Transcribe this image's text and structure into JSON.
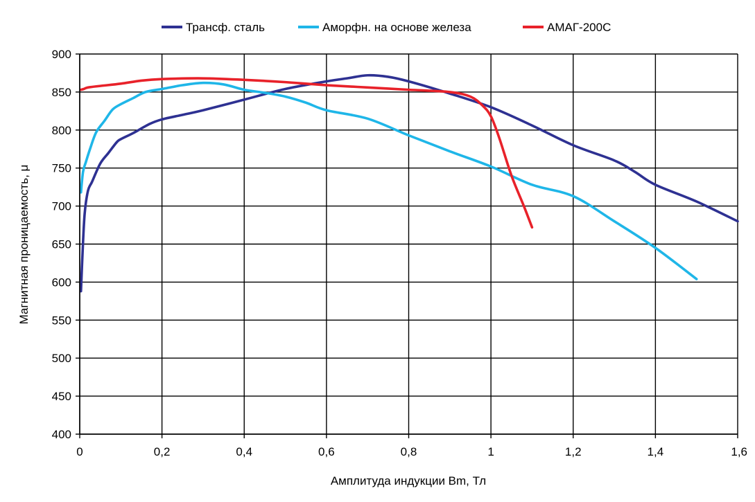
{
  "chart_data": {
    "type": "line",
    "title": "",
    "xlabel": "Амплитуда индукции Bm, Тл",
    "ylabel": "Магнитная проницаемость, μ",
    "xlim": [
      0,
      1.6
    ],
    "ylim": [
      400,
      900
    ],
    "x_ticks": [
      0,
      0.2,
      0.4,
      0.6,
      0.8,
      1,
      1.2,
      1.4,
      1.6
    ],
    "x_tick_labels": [
      "0",
      "0,2",
      "0,4",
      "0,6",
      "0,8",
      "1",
      "1,2",
      "1,4",
      "1,6"
    ],
    "y_ticks": [
      400,
      450,
      500,
      550,
      600,
      650,
      700,
      750,
      800,
      850,
      900
    ],
    "y_tick_labels": [
      "400",
      "450",
      "500",
      "550",
      "600",
      "650",
      "700",
      "750",
      "800",
      "850",
      "900"
    ],
    "grid": true,
    "legend": "top",
    "series": [
      {
        "name": "Трансф. сталь",
        "color": "#2e3192",
        "x": [
          0.003,
          0.007,
          0.012,
          0.02,
          0.03,
          0.05,
          0.07,
          0.09,
          0.1,
          0.13,
          0.17,
          0.2,
          0.25,
          0.3,
          0.4,
          0.5,
          0.6,
          0.65,
          0.7,
          0.75,
          0.8,
          0.9,
          1.0,
          1.1,
          1.2,
          1.3,
          1.35,
          1.4,
          1.5,
          1.6
        ],
        "values": [
          588,
          640,
          690,
          720,
          732,
          756,
          770,
          784,
          788,
          796,
          808,
          814,
          820,
          826,
          840,
          854,
          864,
          868,
          872,
          870,
          864,
          848,
          830,
          806,
          780,
          760,
          745,
          728,
          706,
          680
        ]
      },
      {
        "name": "Аморфн. на основе железа",
        "color": "#1fb6e8",
        "x": [
          0.003,
          0.008,
          0.015,
          0.025,
          0.04,
          0.06,
          0.08,
          0.1,
          0.13,
          0.16,
          0.2,
          0.25,
          0.3,
          0.35,
          0.4,
          0.45,
          0.5,
          0.55,
          0.6,
          0.7,
          0.8,
          0.9,
          1.0,
          1.1,
          1.2,
          1.3,
          1.4,
          1.5
        ],
        "values": [
          718,
          745,
          758,
          775,
          797,
          812,
          827,
          834,
          842,
          850,
          854,
          859,
          862,
          860,
          853,
          849,
          844,
          836,
          826,
          815,
          793,
          772,
          752,
          728,
          713,
          680,
          645,
          604
        ]
      },
      {
        "name": "АМАГ-200С",
        "color": "#e8222a",
        "x": [
          0.003,
          0.01,
          0.02,
          0.05,
          0.1,
          0.15,
          0.2,
          0.3,
          0.4,
          0.5,
          0.6,
          0.7,
          0.8,
          0.9,
          0.95,
          0.98,
          1.0,
          1.02,
          1.05,
          1.08,
          1.1
        ],
        "values": [
          853,
          854,
          856,
          858,
          861,
          865,
          867,
          868,
          866,
          863,
          859,
          856,
          853,
          850,
          844,
          832,
          818,
          790,
          740,
          700,
          672
        ]
      }
    ]
  }
}
